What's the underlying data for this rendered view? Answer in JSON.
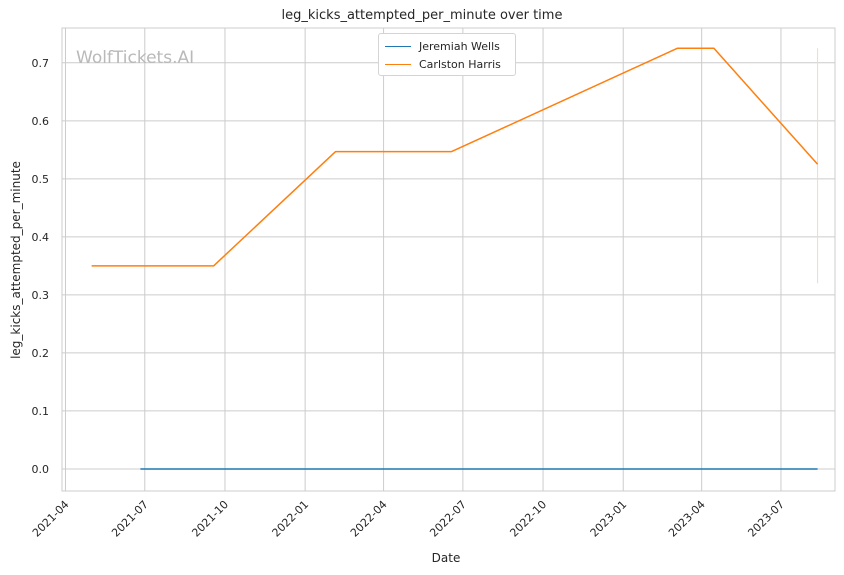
{
  "watermark": "WolfTickets.AI",
  "chart_data": {
    "type": "line",
    "title": "leg_kicks_attempted_per_minute over time",
    "xlabel": "Date",
    "ylabel": "leg_kicks_attempted_per_minute",
    "x_ticks": [
      "2021-04",
      "2021-07",
      "2021-10",
      "2022-01",
      "2022-04",
      "2022-07",
      "2022-10",
      "2023-01",
      "2023-04",
      "2023-07"
    ],
    "y_ticks": [
      "0.0",
      "0.1",
      "0.2",
      "0.3",
      "0.4",
      "0.5",
      "0.6",
      "0.7"
    ],
    "xlim": [
      "2021-03-28",
      "2023-09-01"
    ],
    "ylim": [
      -0.038,
      0.76
    ],
    "grid": true,
    "legend_position": "top-center",
    "series": [
      {
        "name": "Jeremiah Wells",
        "color": "#1f77b4",
        "points": [
          {
            "x": "2021-06-26",
            "y": 0.0
          },
          {
            "x": "2023-08-12",
            "y": 0.0
          }
        ]
      },
      {
        "name": "Carlston Harris",
        "color": "#ff7f0e",
        "points": [
          {
            "x": "2021-05-01",
            "y": 0.35
          },
          {
            "x": "2021-09-18",
            "y": 0.35
          },
          {
            "x": "2022-02-05",
            "y": 0.547
          },
          {
            "x": "2022-06-18",
            "y": 0.547
          },
          {
            "x": "2023-03-04",
            "y": 0.725
          },
          {
            "x": "2023-04-15",
            "y": 0.725
          },
          {
            "x": "2023-08-12",
            "y": 0.525
          }
        ]
      }
    ],
    "error_bar": {
      "x": "2023-08-12",
      "y_low": 0.32,
      "y_high": 0.725,
      "color": "#f5d9c0"
    }
  }
}
